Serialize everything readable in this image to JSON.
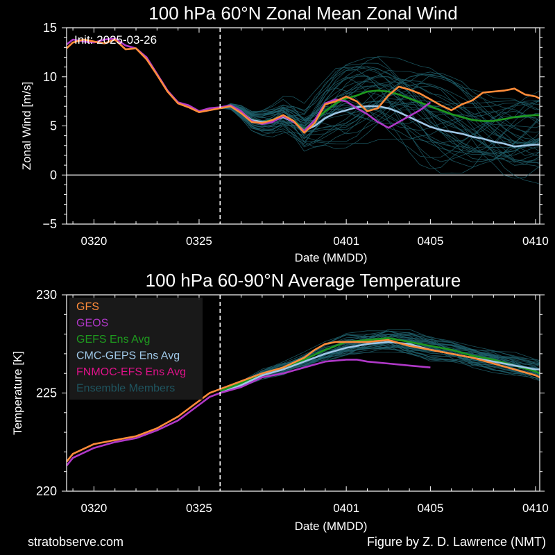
{
  "footer": {
    "left": "stratobserve.com",
    "right": "Figure by Z. D. Lawrence (NMT)"
  },
  "chart_data": [
    {
      "type": "line",
      "title": "100 hPa  60°N   Zonal Mean Zonal Wind",
      "xlabel": "Date (MMDD)",
      "ylabel": "Zonal  Wind   [m/s]",
      "annotation": "Init: 2025-03-26",
      "init_day": 26,
      "xlim": [
        18.7,
        41.2
      ],
      "ylim": [
        -5,
        15
      ],
      "ytick_values": [
        -5,
        0,
        5,
        10,
        15
      ],
      "ytick_labels": [
        "−5",
        "0",
        "5",
        "10",
        "15"
      ],
      "xtick_days": [
        20,
        25,
        32,
        36,
        41
      ],
      "xtick_labels": [
        "0320",
        "0325",
        "0401",
        "0405",
        "0410"
      ],
      "zero_line": true,
      "legend": null,
      "series": [
        {
          "name": "GFS",
          "color": "#ff8c3a",
          "x": [
            18.7,
            19,
            19.5,
            20,
            20.5,
            21,
            21.5,
            22,
            22.5,
            23,
            23.5,
            24,
            24.5,
            25,
            25.5,
            26,
            26.5,
            27,
            27.5,
            28,
            28.5,
            29,
            29.5,
            30,
            30.5,
            31,
            31.5,
            32,
            32.5,
            33,
            33.5,
            34,
            34.5,
            35,
            35.5,
            36,
            36.5,
            37,
            37.5,
            38,
            38.5,
            39,
            39.5,
            40,
            40.5,
            41,
            41.2
          ],
          "y": [
            12.9,
            13.5,
            13.8,
            13.6,
            13.4,
            13.8,
            12.8,
            12.9,
            11.8,
            10.2,
            8.5,
            7.3,
            6.9,
            6.4,
            6.6,
            6.8,
            7.0,
            6.3,
            5.4,
            5.3,
            5.6,
            6.1,
            5.5,
            4.3,
            5.3,
            7.2,
            7.5,
            8.0,
            7.5,
            6.5,
            6.8,
            8.1,
            9.0,
            8.7,
            8.3,
            7.7,
            7.1,
            6.6,
            7.2,
            7.6,
            8.4,
            8.5,
            8.6,
            8.8,
            8.2,
            8.0,
            7.8
          ]
        },
        {
          "name": "GEOS",
          "color": "#b038c8",
          "x": [
            18.7,
            19,
            19.5,
            20,
            20.5,
            21,
            21.5,
            22,
            22.5,
            23,
            23.5,
            24,
            24.5,
            25,
            25.5,
            26,
            26.5,
            27,
            27.5,
            28,
            28.5,
            29,
            29.5,
            30,
            30.5,
            31,
            31.5,
            32,
            32.5,
            33,
            33.5,
            34,
            34.5,
            35,
            35.5,
            36
          ],
          "y": [
            13.3,
            13.8,
            13.6,
            13.5,
            13.8,
            13.9,
            13.2,
            12.9,
            12.0,
            10.3,
            8.6,
            7.4,
            7.1,
            6.5,
            6.8,
            6.9,
            7.1,
            6.5,
            5.5,
            5.2,
            5.4,
            6.0,
            5.4,
            4.5,
            5.6,
            7.3,
            7.7,
            7.5,
            6.8,
            6.2,
            5.4,
            4.8,
            5.4,
            6.0,
            6.6,
            7.4
          ]
        },
        {
          "name": "GEFS Ens Avg",
          "color": "#1e9a1e",
          "x": [
            26,
            26.5,
            27,
            27.5,
            28,
            28.5,
            29,
            29.5,
            30,
            30.5,
            31,
            31.5,
            32,
            32.5,
            33,
            33.5,
            34,
            34.5,
            35,
            35.5,
            36,
            36.5,
            37,
            37.5,
            38,
            38.5,
            39,
            39.5,
            40,
            40.5,
            41,
            41.2
          ],
          "y": [
            6.8,
            7.0,
            6.5,
            5.6,
            5.4,
            5.6,
            6.0,
            5.5,
            4.6,
            5.6,
            6.5,
            7.3,
            7.8,
            8.1,
            8.5,
            8.6,
            8.5,
            8.2,
            7.8,
            7.4,
            7.0,
            6.6,
            6.2,
            5.9,
            5.6,
            5.5,
            5.5,
            5.7,
            5.9,
            6.0,
            6.1,
            6.1
          ]
        },
        {
          "name": "CMC-GEPS Ens Avg",
          "color": "#9fc7e6",
          "x": [
            26,
            26.5,
            27,
            27.5,
            28,
            28.5,
            29,
            29.5,
            30,
            30.5,
            31,
            31.5,
            32,
            32.5,
            33,
            33.5,
            34,
            34.5,
            35,
            35.5,
            36,
            36.5,
            37,
            37.5,
            38,
            38.5,
            39,
            39.5,
            40,
            40.5,
            41,
            41.2
          ],
          "y": [
            6.8,
            7.0,
            6.4,
            5.6,
            5.4,
            5.5,
            5.9,
            5.4,
            4.5,
            5.0,
            5.8,
            6.3,
            6.6,
            6.9,
            7.0,
            7.0,
            6.8,
            6.4,
            5.9,
            5.4,
            4.9,
            4.6,
            4.4,
            4.2,
            3.9,
            3.7,
            3.4,
            3.2,
            2.9,
            3.0,
            3.1,
            3.1
          ]
        }
      ]
    },
    {
      "type": "line",
      "title": "100 hPa  60-90°N Average Temperature",
      "xlabel": "Date (MMDD)",
      "ylabel": "Temperature  [K]",
      "init_day": 26,
      "xlim": [
        18.7,
        41.2
      ],
      "ylim": [
        220,
        230
      ],
      "ytick_values": [
        220,
        225,
        230
      ],
      "ytick_labels": [
        "220",
        "225",
        "230"
      ],
      "xtick_days": [
        20,
        25,
        32,
        36,
        41
      ],
      "xtick_labels": [
        "0320",
        "0325",
        "0401",
        "0405",
        "0410"
      ],
      "legend": {
        "placement": "upper-left",
        "entries": [
          {
            "label": "GFS",
            "color": "#ff8c3a"
          },
          {
            "label": "GEOS",
            "color": "#b038c8"
          },
          {
            "label": "GEFS Ens Avg",
            "color": "#1e9a1e"
          },
          {
            "label": "CMC-GEPS Ens Avg",
            "color": "#9fc7e6"
          },
          {
            "label": "FNMOC-EFS Ens Avg",
            "color": "#e0128a"
          },
          {
            "label": "Ensemble Members",
            "color": "#1f5560"
          }
        ]
      },
      "series": [
        {
          "name": "GFS",
          "color": "#ff8c3a",
          "x": [
            18.7,
            19,
            20,
            21,
            22,
            23,
            24,
            25,
            25.5,
            26,
            27,
            28,
            29,
            30,
            30.5,
            31,
            31.5,
            32,
            33,
            34,
            35,
            36,
            37,
            38,
            39,
            40,
            41,
            41.2
          ],
          "y": [
            221.5,
            221.9,
            222.4,
            222.6,
            222.8,
            223.2,
            223.8,
            224.6,
            225.0,
            225.2,
            225.6,
            226.0,
            226.3,
            226.8,
            227.2,
            227.5,
            227.6,
            227.6,
            227.6,
            227.7,
            227.4,
            227.2,
            227.0,
            226.8,
            226.5,
            226.2,
            225.9,
            225.8
          ]
        },
        {
          "name": "GEOS",
          "color": "#b038c8",
          "x": [
            18.7,
            19,
            20,
            21,
            22,
            23,
            24,
            25,
            25.5,
            26,
            27,
            28,
            29,
            30,
            31,
            32,
            32.5,
            33,
            34,
            35,
            36
          ],
          "y": [
            221.3,
            221.7,
            222.2,
            222.5,
            222.7,
            223.1,
            223.6,
            224.4,
            224.8,
            225.0,
            225.3,
            225.8,
            226.0,
            226.3,
            226.6,
            226.7,
            226.7,
            226.6,
            226.5,
            226.4,
            226.3
          ]
        },
        {
          "name": "GEFS Ens Avg",
          "color": "#1e9a1e",
          "x": [
            26,
            27,
            28,
            29,
            30,
            31,
            32,
            33,
            34,
            35,
            36,
            37,
            38,
            39,
            40,
            41,
            41.2
          ],
          "y": [
            225.1,
            225.5,
            226.0,
            226.3,
            226.7,
            227.2,
            227.6,
            227.7,
            227.8,
            227.6,
            227.4,
            227.2,
            226.9,
            226.7,
            226.4,
            226.1,
            226.0
          ]
        },
        {
          "name": "CMC-GEPS Ens Avg",
          "color": "#9fc7e6",
          "x": [
            26,
            27,
            28,
            29,
            30,
            31,
            32,
            33,
            34,
            35,
            36,
            37,
            38,
            39,
            40,
            41,
            41.2
          ],
          "y": [
            225.0,
            225.4,
            225.9,
            226.2,
            226.6,
            227.0,
            227.3,
            227.5,
            227.6,
            227.5,
            227.2,
            227.0,
            226.8,
            226.6,
            226.4,
            226.2,
            226.2
          ]
        }
      ]
    }
  ]
}
